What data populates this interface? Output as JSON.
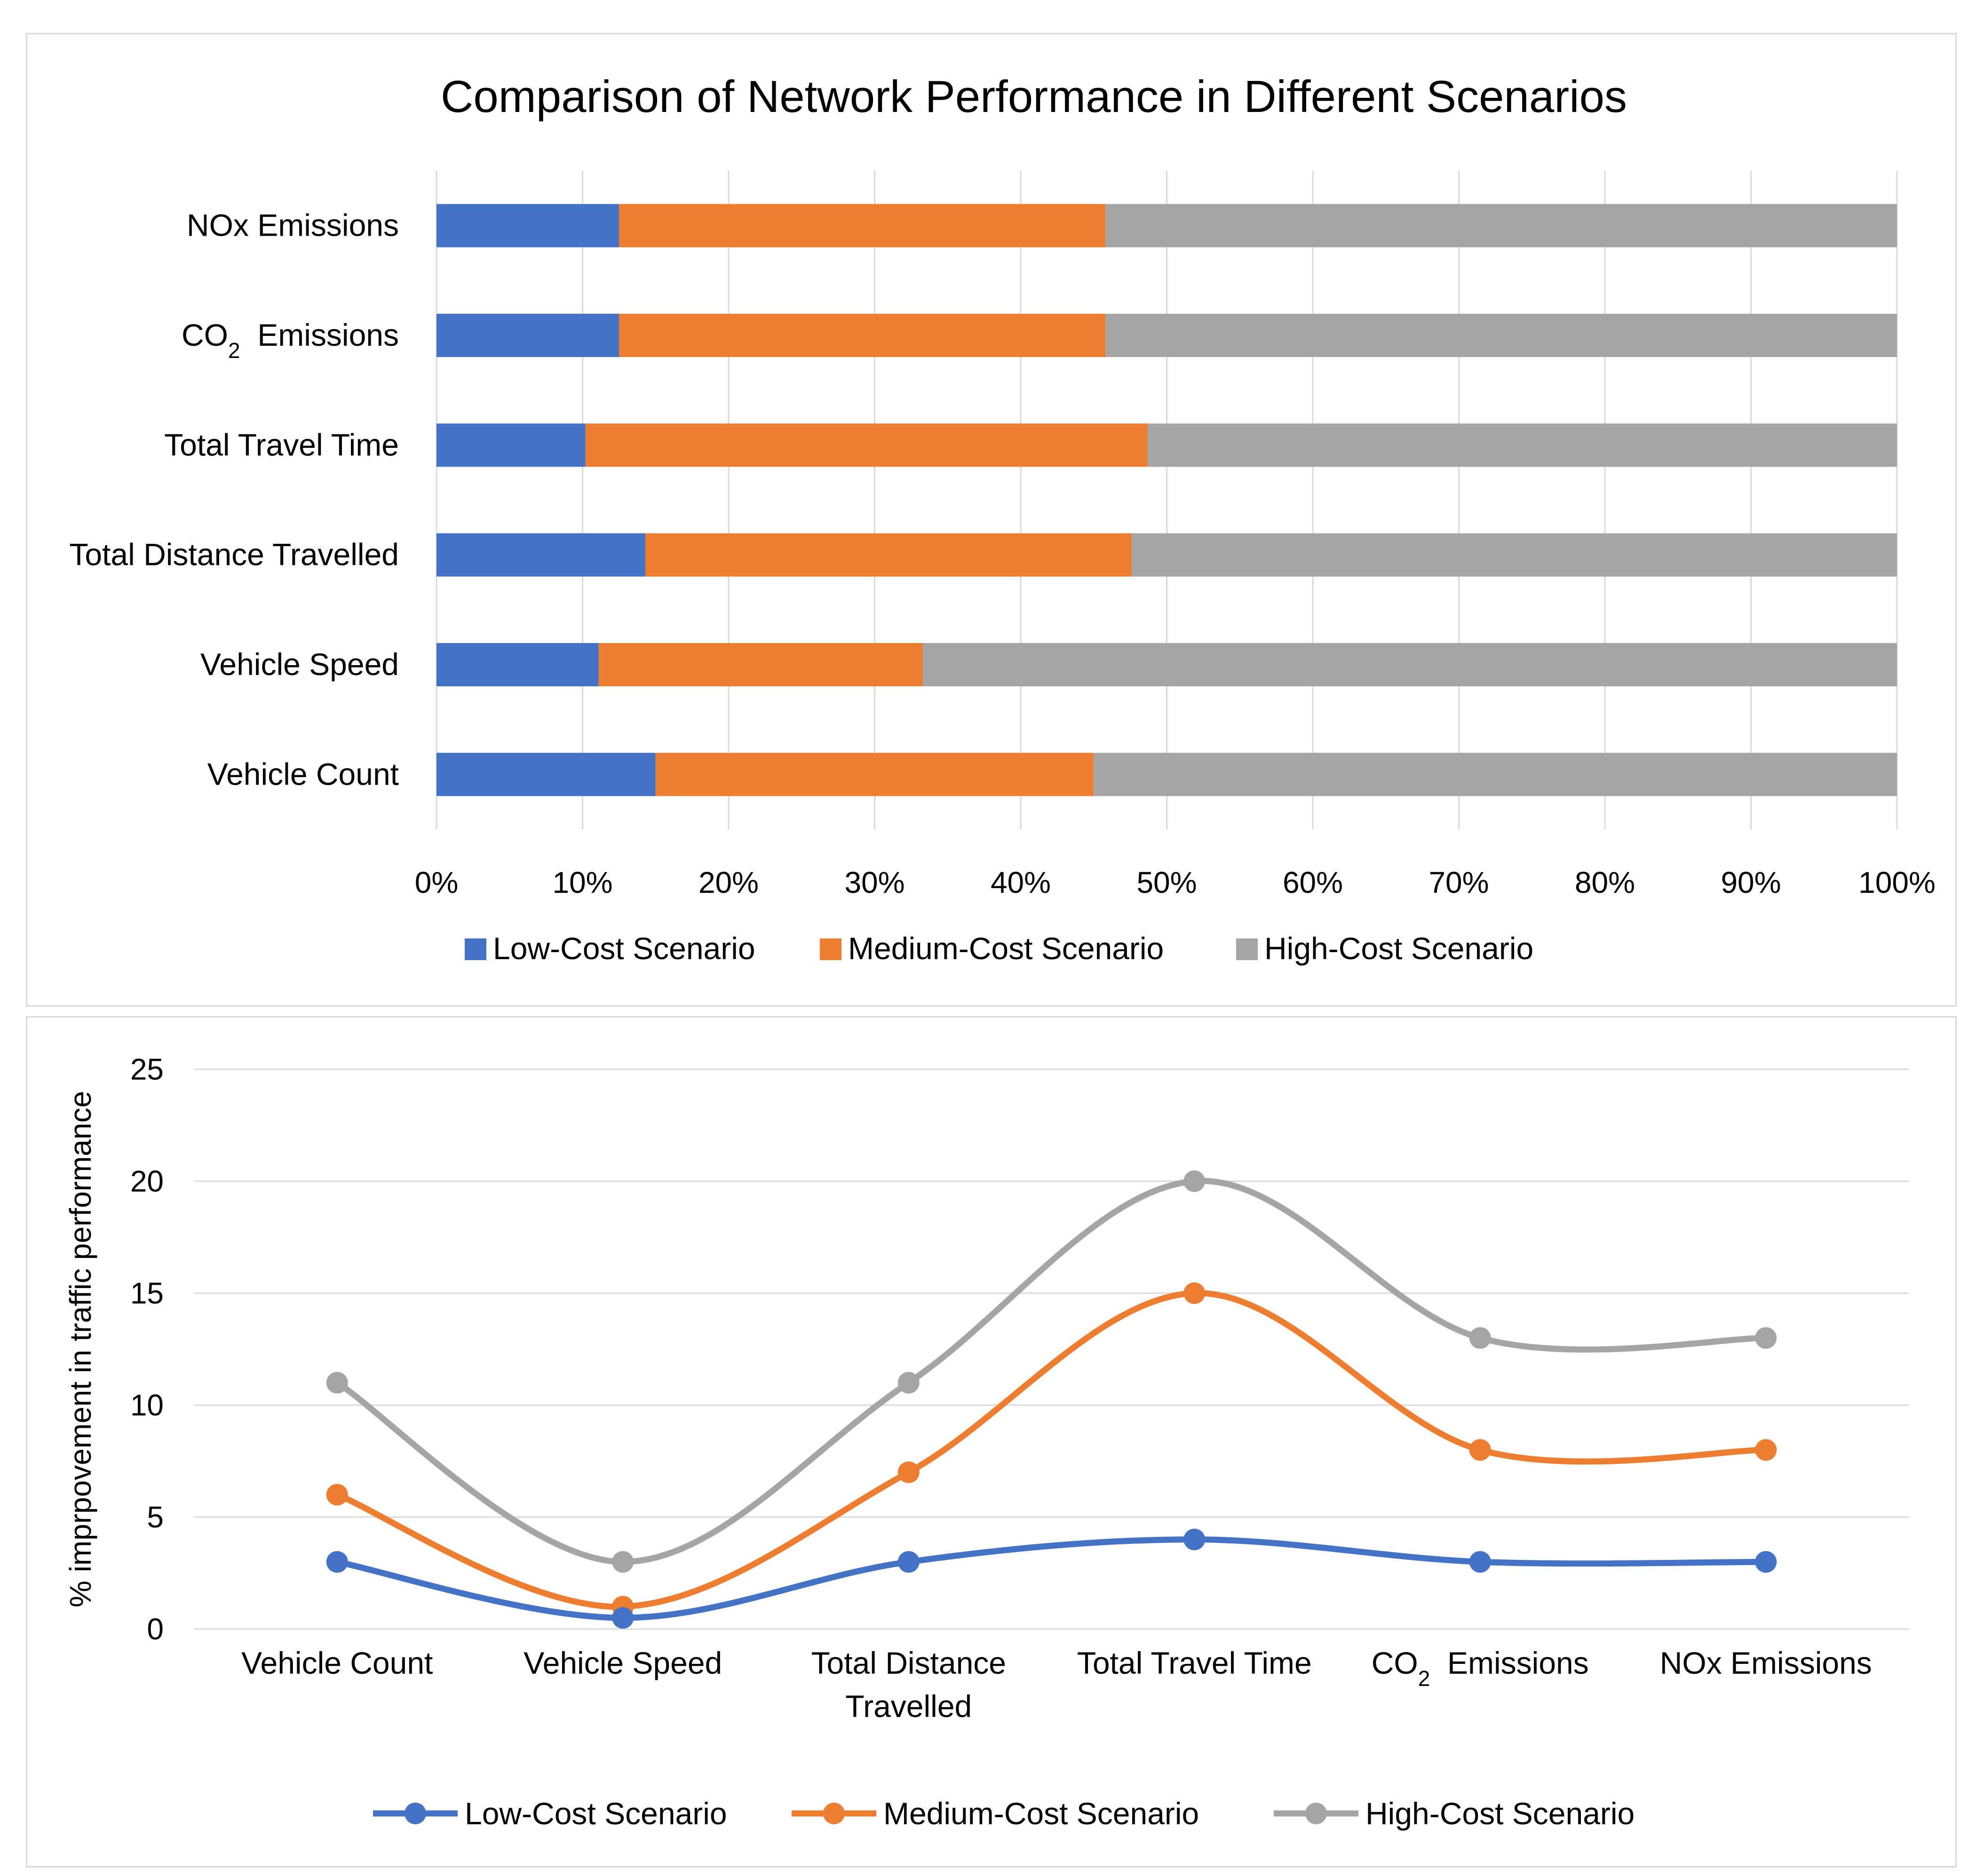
{
  "colors": {
    "low": "#4472C4",
    "medium": "#ED7D31",
    "high": "#A5A5A5",
    "grid": "#D9D9D9"
  },
  "chart_data": [
    {
      "type": "bar",
      "orientation": "horizontal",
      "stacking": "percent",
      "title": "Comparison of Network Performance in Different Scenarios",
      "categories": [
        {
          "text": "NOx Emissions",
          "sub": "",
          "suffix": ""
        },
        {
          "text": "CO",
          "sub": "2",
          "suffix": "Emissions"
        },
        {
          "text": "Total Travel Time",
          "sub": "",
          "suffix": ""
        },
        {
          "text": "Total Distance Travelled",
          "sub": "",
          "suffix": ""
        },
        {
          "text": "Vehicle Speed",
          "sub": "",
          "suffix": ""
        },
        {
          "text": "Vehicle Count",
          "sub": "",
          "suffix": ""
        }
      ],
      "series": [
        {
          "name": "Low-Cost Scenario",
          "values": [
            12.5,
            12.5,
            10.2,
            14.3,
            11.1,
            15.0
          ]
        },
        {
          "name": "Medium-Cost Scenario",
          "values": [
            33.3,
            33.3,
            38.5,
            33.3,
            22.2,
            30.0
          ]
        },
        {
          "name": "High-Cost Scenario",
          "values": [
            54.2,
            54.2,
            51.3,
            52.4,
            66.7,
            55.0
          ]
        }
      ],
      "xlim": [
        0,
        100
      ],
      "xticks": [
        "0%",
        "10%",
        "20%",
        "30%",
        "40%",
        "50%",
        "60%",
        "70%",
        "80%",
        "90%",
        "100%"
      ],
      "legend": "bottom"
    },
    {
      "type": "line",
      "smooth": true,
      "title": "",
      "categories": [
        {
          "lines": [
            "Vehicle Count"
          ],
          "sub": "",
          "suffix": ""
        },
        {
          "lines": [
            "Vehicle Speed"
          ],
          "sub": "",
          "suffix": ""
        },
        {
          "lines": [
            "Total Distance",
            "Travelled"
          ],
          "sub": "",
          "suffix": ""
        },
        {
          "lines": [
            "Total Travel Time"
          ],
          "sub": "",
          "suffix": ""
        },
        {
          "lines": [
            "CO"
          ],
          "sub": "2",
          "suffix": "Emissions"
        },
        {
          "lines": [
            "NOx Emissions"
          ],
          "sub": "",
          "suffix": ""
        }
      ],
      "series": [
        {
          "name": "Low-Cost Scenario",
          "values": [
            3,
            0.5,
            3,
            4,
            3,
            3
          ]
        },
        {
          "name": "Medium-Cost Scenario",
          "values": [
            6,
            1,
            7,
            15,
            8,
            8
          ]
        },
        {
          "name": "High-Cost Scenario",
          "values": [
            11,
            3,
            11,
            20,
            13,
            13
          ]
        }
      ],
      "ylabel": "% imprpovement in traffic performance",
      "ylim": [
        0,
        25
      ],
      "yticks": [
        "0",
        "5",
        "10",
        "15",
        "20",
        "25"
      ],
      "legend": "bottom"
    }
  ]
}
